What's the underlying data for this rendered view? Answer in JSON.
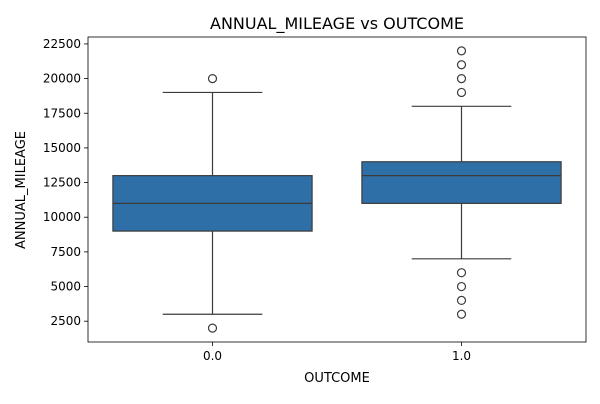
{
  "chart_data": {
    "type": "box",
    "title": "ANNUAL_MILEAGE vs OUTCOME",
    "xlabel": "OUTCOME",
    "ylabel": "ANNUAL_MILEAGE",
    "categories": [
      "0.0",
      "1.0"
    ],
    "ylim": [
      1000,
      23000
    ],
    "yticks": [
      2500,
      5000,
      7500,
      10000,
      12500,
      15000,
      17500,
      20000,
      22500
    ],
    "ytick_labels": [
      "2500",
      "5000",
      "7500",
      "10000",
      "12500",
      "15000",
      "17500",
      "20000",
      "22500"
    ],
    "box_color": "#2f6fa8",
    "edge_color": "#3b3b3b",
    "boxes": [
      {
        "category": "0.0",
        "whisker_low": 3000,
        "q1": 9000,
        "median": 11000,
        "q3": 13000,
        "whisker_high": 19000,
        "outliers": [
          2000,
          20000
        ]
      },
      {
        "category": "1.0",
        "whisker_low": 7000,
        "q1": 11000,
        "median": 13000,
        "q3": 14000,
        "whisker_high": 18000,
        "outliers": [
          3000,
          4000,
          5000,
          6000,
          19000,
          20000,
          21000,
          22000
        ]
      }
    ]
  }
}
